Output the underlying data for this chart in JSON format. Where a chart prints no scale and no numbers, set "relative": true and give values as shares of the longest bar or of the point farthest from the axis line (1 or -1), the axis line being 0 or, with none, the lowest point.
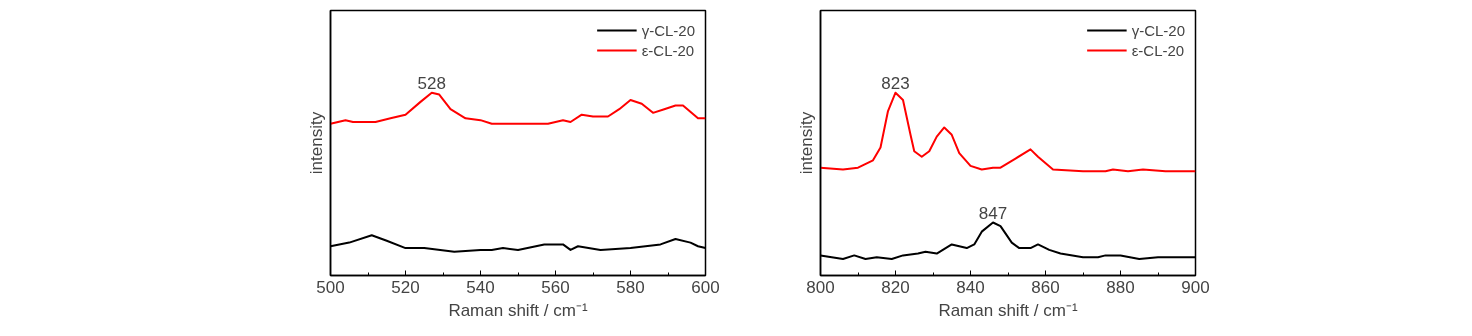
{
  "chart_data": [
    {
      "type": "line",
      "xlabel": "Raman shift / cm⁻¹",
      "ylabel": "intensity",
      "relative": true,
      "tick_labels": "x",
      "legend": "top right",
      "grid": false,
      "marker": "none",
      "line_style": "solid",
      "xlim": [
        500,
        600
      ],
      "xticks": [
        500,
        520,
        540,
        560,
        580,
        600
      ],
      "annotations": [
        {
          "text": "528",
          "x": 527,
          "y": 1.0
        }
      ],
      "series": [
        {
          "name": "γ-CL-20",
          "color": "#000000",
          "x": [
            500,
            505,
            511,
            515,
            520,
            525,
            533,
            540,
            543,
            546,
            550,
            557,
            562,
            564,
            566,
            572,
            580,
            588,
            592,
            596,
            598,
            600
          ],
          "values": [
            0.16,
            0.18,
            0.22,
            0.19,
            0.15,
            0.15,
            0.13,
            0.14,
            0.14,
            0.15,
            0.14,
            0.17,
            0.17,
            0.14,
            0.16,
            0.14,
            0.15,
            0.17,
            0.2,
            0.18,
            0.16,
            0.15
          ]
        },
        {
          "name": "ε-CL-20",
          "color": "#ff0000",
          "x": [
            500,
            504,
            506,
            512,
            516,
            520,
            524,
            527,
            529,
            532,
            536,
            540,
            543,
            550,
            558,
            562,
            564,
            567,
            570,
            574,
            577,
            580,
            583,
            586,
            589,
            592,
            594,
            598,
            600
          ],
          "values": [
            0.83,
            0.85,
            0.84,
            0.84,
            0.86,
            0.88,
            0.95,
            1.0,
            0.99,
            0.91,
            0.86,
            0.85,
            0.83,
            0.83,
            0.83,
            0.85,
            0.84,
            0.88,
            0.87,
            0.87,
            0.91,
            0.96,
            0.94,
            0.89,
            0.91,
            0.93,
            0.93,
            0.86,
            0.86
          ]
        }
      ]
    },
    {
      "type": "line",
      "xlabel": "Raman shift / cm⁻¹",
      "ylabel": "intensity",
      "relative": true,
      "tick_labels": "x",
      "legend": "top right",
      "grid": false,
      "marker": "none",
      "line_style": "solid",
      "xlim": [
        800,
        900
      ],
      "xticks": [
        800,
        820,
        840,
        860,
        880,
        900
      ],
      "annotations": [
        {
          "text": "823",
          "x": 820,
          "y": 1.0
        },
        {
          "text": "847",
          "x": 846,
          "y": 0.29
        }
      ],
      "series": [
        {
          "name": "γ-CL-20",
          "color": "#000000",
          "x": [
            800,
            806,
            809,
            812,
            815,
            819,
            822,
            826,
            828,
            831,
            835,
            839,
            841,
            843,
            846,
            848,
            851,
            853,
            856,
            858,
            861,
            864,
            870,
            874,
            876,
            880,
            885,
            890,
            895,
            900
          ],
          "values": [
            0.11,
            0.09,
            0.11,
            0.09,
            0.1,
            0.09,
            0.11,
            0.12,
            0.13,
            0.12,
            0.17,
            0.15,
            0.17,
            0.24,
            0.29,
            0.27,
            0.18,
            0.15,
            0.15,
            0.17,
            0.14,
            0.12,
            0.1,
            0.1,
            0.11,
            0.11,
            0.09,
            0.1,
            0.1,
            0.1
          ]
        },
        {
          "name": "ε-CL-20",
          "color": "#ff0000",
          "x": [
            800,
            806,
            810,
            814,
            816,
            818,
            820,
            822,
            824,
            825,
            827,
            829,
            831,
            833,
            835,
            837,
            840,
            843,
            846,
            848,
            852,
            856,
            858,
            862,
            870,
            876,
            878,
            882,
            886,
            892,
            900
          ],
          "values": [
            0.59,
            0.58,
            0.59,
            0.63,
            0.7,
            0.9,
            1.0,
            0.96,
            0.77,
            0.68,
            0.65,
            0.68,
            0.76,
            0.81,
            0.77,
            0.67,
            0.6,
            0.58,
            0.59,
            0.59,
            0.64,
            0.69,
            0.65,
            0.58,
            0.57,
            0.57,
            0.58,
            0.57,
            0.58,
            0.57,
            0.57
          ]
        }
      ]
    }
  ]
}
